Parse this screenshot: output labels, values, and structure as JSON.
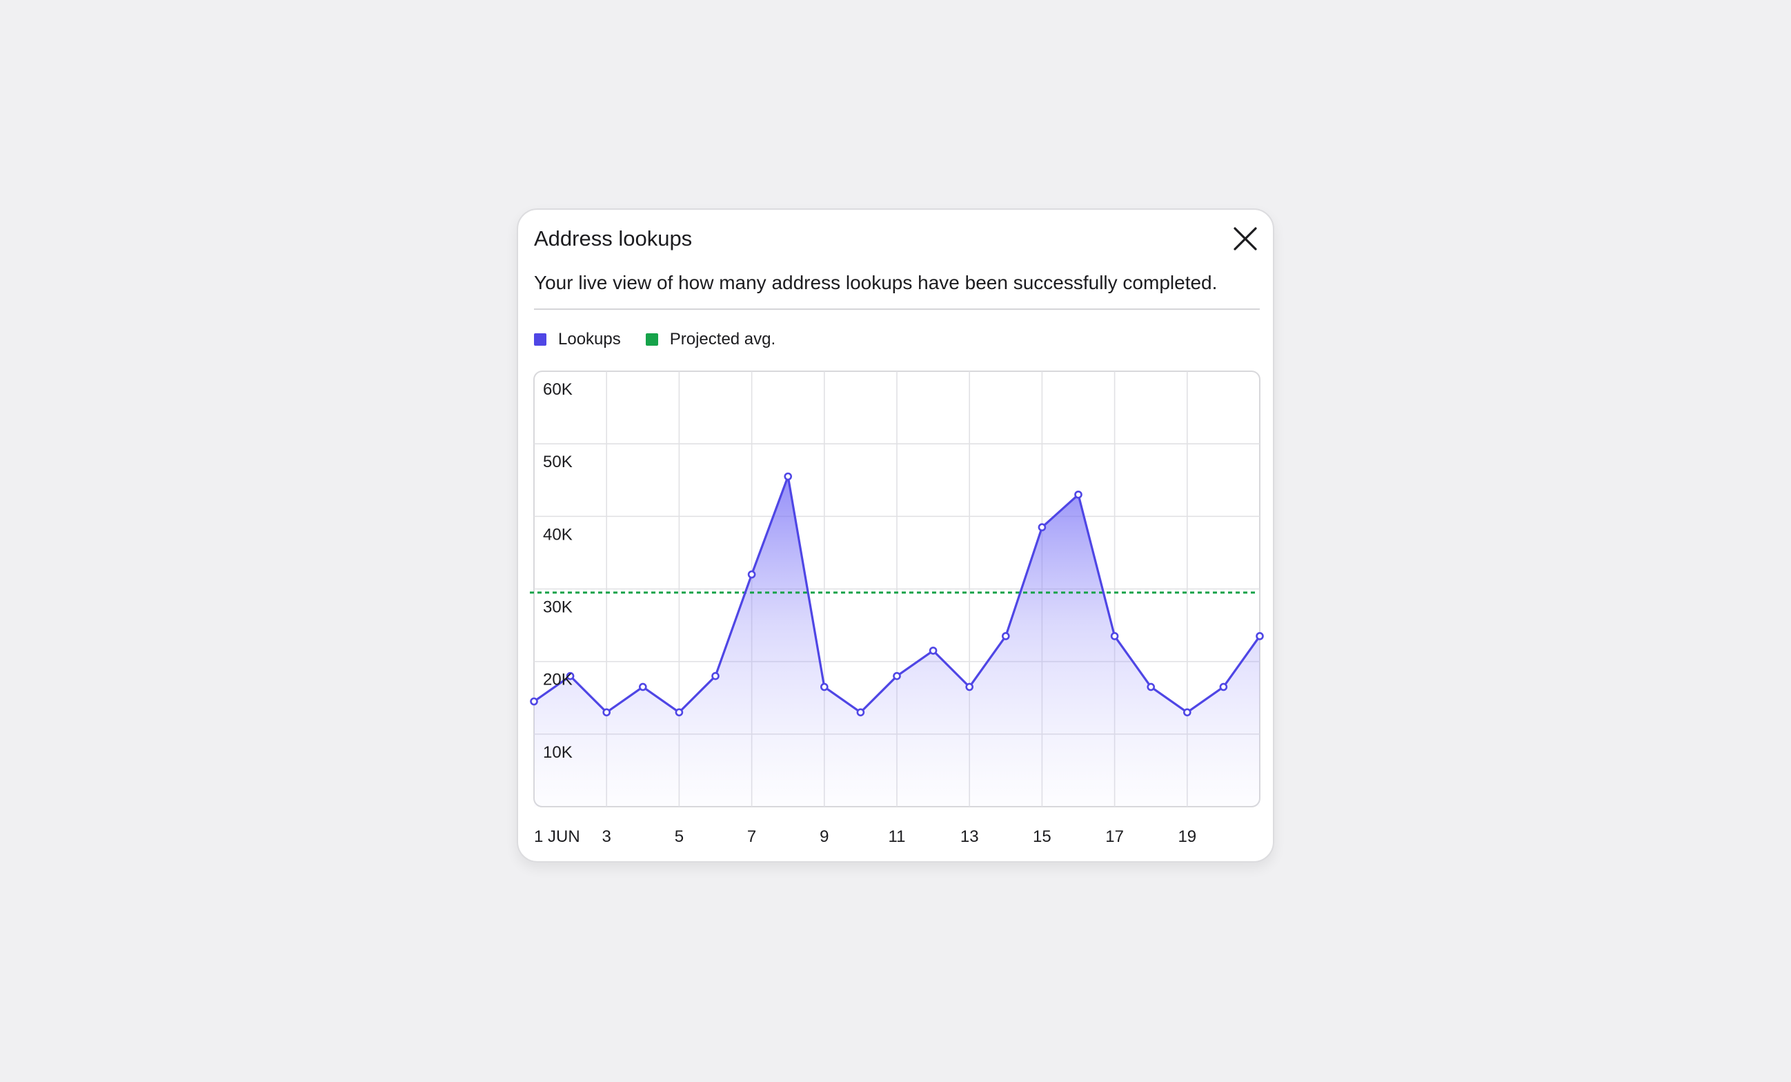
{
  "panel": {
    "title": "Address lookups",
    "subtitle": "Your live view of how many address lookups have been successfully completed.",
    "close_icon": "close-icon"
  },
  "legend": [
    {
      "label": "Lookups",
      "color": "#4f46e5"
    },
    {
      "label": "Projected avg.",
      "color": "#16a34a"
    }
  ],
  "chart_data": {
    "type": "area",
    "x": [
      "1 JUN",
      "2",
      "3",
      "4",
      "5",
      "6",
      "7",
      "8",
      "9",
      "10",
      "11",
      "12",
      "13",
      "14",
      "15",
      "16",
      "17",
      "18",
      "19",
      "20",
      "21"
    ],
    "series": [
      {
        "name": "Lookups",
        "color": "#4f46e5",
        "values": [
          14500,
          18000,
          13000,
          16500,
          13000,
          18000,
          32000,
          45500,
          16500,
          13000,
          18000,
          21500,
          16500,
          23500,
          38500,
          43000,
          23500,
          16500,
          13000,
          16500,
          23500
        ]
      },
      {
        "name": "Projected avg.",
        "color": "#16a34a",
        "style": "dashed",
        "value": 29500
      }
    ],
    "x_tick_labels": [
      "1 JUN",
      "3",
      "5",
      "7",
      "9",
      "11",
      "13",
      "15",
      "17",
      "19"
    ],
    "y_tick_labels": [
      "60K",
      "50K",
      "40K",
      "30K",
      "20K",
      "10K"
    ],
    "y_ticks": [
      60000,
      50000,
      40000,
      30000,
      20000,
      10000
    ],
    "ylim": [
      0,
      60000
    ],
    "grid": true,
    "legend_position": "top-left"
  }
}
